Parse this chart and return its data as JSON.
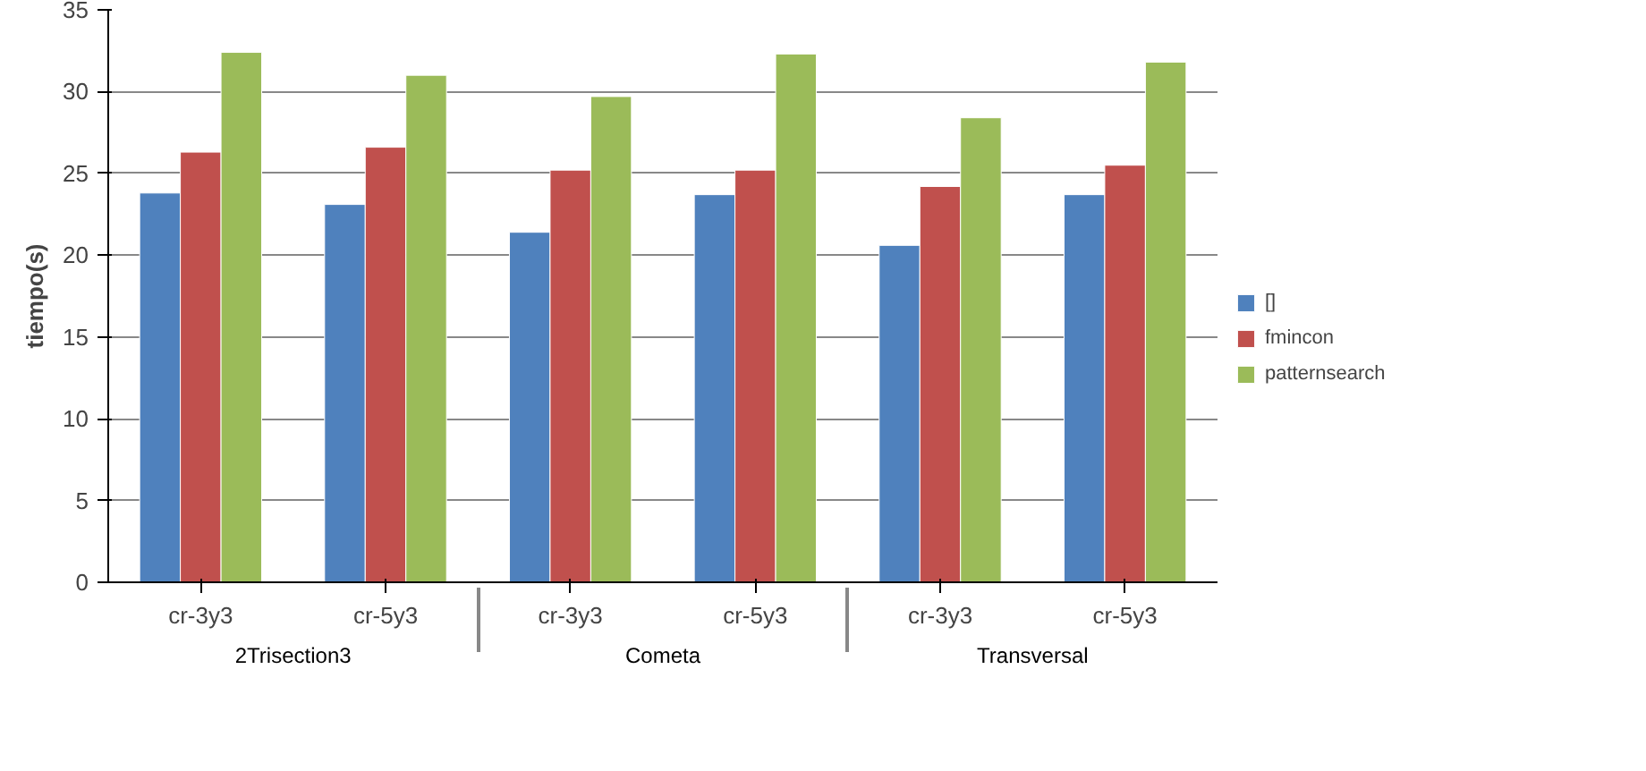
{
  "chart_data": {
    "type": "bar",
    "ylabel": "tiempo(s)",
    "categories": [
      "cr-3y3",
      "cr-5y3",
      "cr-3y3",
      "cr-5y3",
      "cr-3y3",
      "cr-5y3"
    ],
    "annotations": [
      "2Trisection3",
      "Cometa",
      "Transversal"
    ],
    "series": [
      {
        "name": "[]",
        "color": "#4f81bd",
        "values": [
          23.8,
          23.1,
          21.4,
          23.7,
          20.6,
          23.7
        ]
      },
      {
        "name": "fmincon",
        "color": "#c0504d",
        "values": [
          26.3,
          26.6,
          25.2,
          25.2,
          24.2,
          25.5
        ]
      },
      {
        "name": "patternsearch",
        "color": "#9bbb59",
        "values": [
          32.4,
          31.0,
          29.7,
          32.3,
          28.4,
          31.8
        ]
      }
    ],
    "ylim": [
      0,
      35
    ],
    "yticks": [
      0,
      5,
      10,
      15,
      20,
      25,
      30,
      35
    ],
    "grid": "y",
    "legend": "right"
  }
}
